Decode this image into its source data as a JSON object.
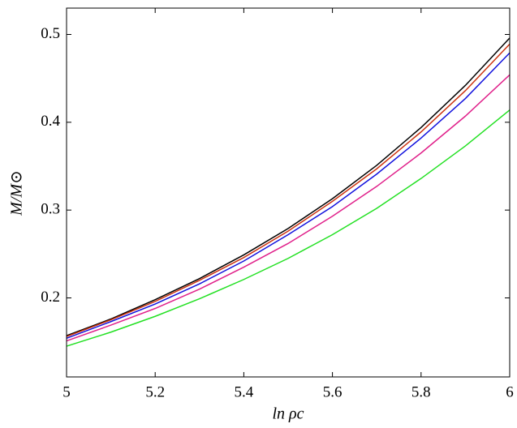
{
  "chart_data": {
    "type": "line",
    "x_label": "ln ρc",
    "y_label": "M/M⊙",
    "x": [
      5,
      5.1,
      5.2,
      5.3,
      5.4,
      5.5,
      5.6,
      5.7,
      5.8,
      5.9,
      6
    ],
    "series": [
      {
        "color": "#000000",
        "values": [
          0.157,
          0.176,
          0.198,
          0.222,
          0.249,
          0.279,
          0.313,
          0.351,
          0.394,
          0.442,
          0.496
        ]
      },
      {
        "color": "#cc3311",
        "values": [
          0.156,
          0.175,
          0.196,
          0.22,
          0.246,
          0.276,
          0.31,
          0.347,
          0.389,
          0.436,
          0.489
        ]
      },
      {
        "color": "#1111dd",
        "values": [
          0.154,
          0.173,
          0.193,
          0.216,
          0.242,
          0.272,
          0.304,
          0.341,
          0.382,
          0.427,
          0.479
        ]
      },
      {
        "color": "#e0208a",
        "values": [
          0.151,
          0.169,
          0.188,
          0.21,
          0.235,
          0.262,
          0.293,
          0.327,
          0.365,
          0.407,
          0.454
        ]
      },
      {
        "color": "#22e022",
        "values": [
          0.145,
          0.161,
          0.179,
          0.199,
          0.221,
          0.245,
          0.272,
          0.302,
          0.336,
          0.373,
          0.414
        ]
      }
    ],
    "xlim": [
      5,
      6
    ],
    "xticks": [
      5,
      5.2,
      5.4,
      5.6,
      5.8,
      6
    ],
    "ylim": [
      0.11,
      0.53
    ],
    "yticks": [
      0.2,
      0.3,
      0.4,
      0.5
    ],
    "grid": false
  }
}
